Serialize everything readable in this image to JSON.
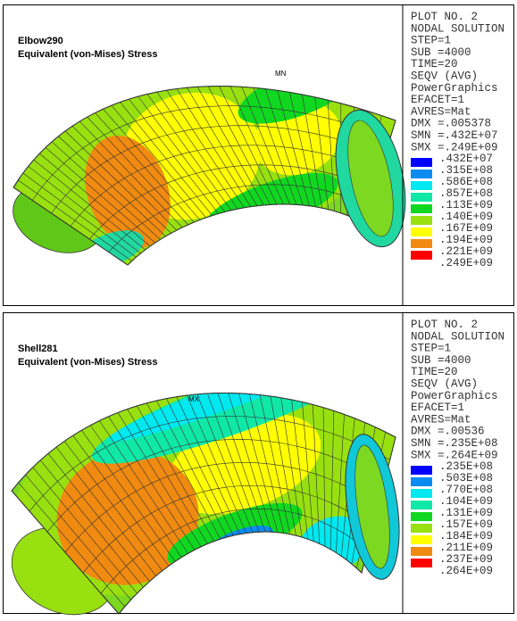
{
  "panels": [
    {
      "title": "Elbow290",
      "subtitle": "Equivalent (von-Mises) Stress",
      "node_label": "MN",
      "info": [
        "PLOT NO.   2",
        "NODAL SOLUTION",
        "STEP=1",
        "SUB =4000",
        "TIME=20",
        "SEQV       (AVG)",
        "PowerGraphics",
        "EFACET=1",
        "AVRES=Mat",
        "DMX =.005378",
        "SMN =.432E+07",
        "SMX =.249E+09"
      ],
      "legend_labels": [
        ".432E+07",
        ".315E+08",
        ".586E+08",
        ".857E+08",
        ".113E+09",
        ".140E+09",
        ".167E+09",
        ".194E+09",
        ".221E+09",
        ".249E+09"
      ]
    },
    {
      "title": "Shell281",
      "subtitle": "Equivalent (von-Mises) Stress",
      "node_label": "MX",
      "info": [
        "PLOT NO.   2",
        "NODAL SOLUTION",
        "STEP=1",
        "SUB =4000",
        "TIME=20",
        "SEQV       (AVG)",
        "PowerGraphics",
        "EFACET=1",
        "AVRES=Mat",
        "DMX =.00536",
        "SMN =.235E+08",
        "SMX =.264E+09"
      ],
      "legend_labels": [
        ".235E+08",
        ".503E+08",
        ".770E+08",
        ".104E+09",
        ".131E+09",
        ".157E+09",
        ".184E+09",
        ".211E+09",
        ".237E+09",
        ".264E+09"
      ]
    }
  ],
  "legend_colors": [
    "#0000ff",
    "#0a8cf0",
    "#00e8f0",
    "#10e8a8",
    "#10d820",
    "#98e010",
    "#ffff00",
    "#f08a10",
    "#ff0000"
  ]
}
